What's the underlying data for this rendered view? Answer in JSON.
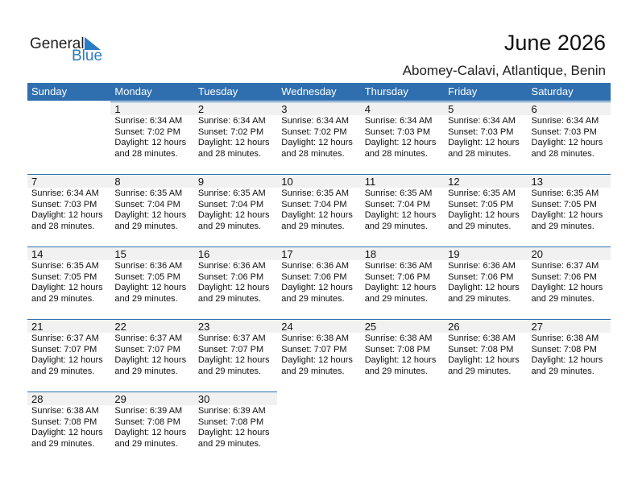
{
  "logo": {
    "line1": "General",
    "line2": "Blue"
  },
  "title": "June 2026",
  "location": "Abomey-Calavi, Atlantique, Benin",
  "colors": {
    "header": "#2f6fb0",
    "day_band": "#f1f1f1",
    "logo_blue": "#2a7bc4"
  },
  "weekdays": [
    "Sunday",
    "Monday",
    "Tuesday",
    "Wednesday",
    "Thursday",
    "Friday",
    "Saturday"
  ],
  "weeks": [
    [
      null,
      {
        "day": "1",
        "sunrise": "Sunrise: 6:34 AM",
        "sunset": "Sunset: 7:02 PM",
        "daylight1": "Daylight: 12 hours",
        "daylight2": "and 28 minutes."
      },
      {
        "day": "2",
        "sunrise": "Sunrise: 6:34 AM",
        "sunset": "Sunset: 7:02 PM",
        "daylight1": "Daylight: 12 hours",
        "daylight2": "and 28 minutes."
      },
      {
        "day": "3",
        "sunrise": "Sunrise: 6:34 AM",
        "sunset": "Sunset: 7:02 PM",
        "daylight1": "Daylight: 12 hours",
        "daylight2": "and 28 minutes."
      },
      {
        "day": "4",
        "sunrise": "Sunrise: 6:34 AM",
        "sunset": "Sunset: 7:03 PM",
        "daylight1": "Daylight: 12 hours",
        "daylight2": "and 28 minutes."
      },
      {
        "day": "5",
        "sunrise": "Sunrise: 6:34 AM",
        "sunset": "Sunset: 7:03 PM",
        "daylight1": "Daylight: 12 hours",
        "daylight2": "and 28 minutes."
      },
      {
        "day": "6",
        "sunrise": "Sunrise: 6:34 AM",
        "sunset": "Sunset: 7:03 PM",
        "daylight1": "Daylight: 12 hours",
        "daylight2": "and 28 minutes."
      }
    ],
    [
      {
        "day": "7",
        "sunrise": "Sunrise: 6:34 AM",
        "sunset": "Sunset: 7:03 PM",
        "daylight1": "Daylight: 12 hours",
        "daylight2": "and 28 minutes."
      },
      {
        "day": "8",
        "sunrise": "Sunrise: 6:35 AM",
        "sunset": "Sunset: 7:04 PM",
        "daylight1": "Daylight: 12 hours",
        "daylight2": "and 29 minutes."
      },
      {
        "day": "9",
        "sunrise": "Sunrise: 6:35 AM",
        "sunset": "Sunset: 7:04 PM",
        "daylight1": "Daylight: 12 hours",
        "daylight2": "and 29 minutes."
      },
      {
        "day": "10",
        "sunrise": "Sunrise: 6:35 AM",
        "sunset": "Sunset: 7:04 PM",
        "daylight1": "Daylight: 12 hours",
        "daylight2": "and 29 minutes."
      },
      {
        "day": "11",
        "sunrise": "Sunrise: 6:35 AM",
        "sunset": "Sunset: 7:04 PM",
        "daylight1": "Daylight: 12 hours",
        "daylight2": "and 29 minutes."
      },
      {
        "day": "12",
        "sunrise": "Sunrise: 6:35 AM",
        "sunset": "Sunset: 7:05 PM",
        "daylight1": "Daylight: 12 hours",
        "daylight2": "and 29 minutes."
      },
      {
        "day": "13",
        "sunrise": "Sunrise: 6:35 AM",
        "sunset": "Sunset: 7:05 PM",
        "daylight1": "Daylight: 12 hours",
        "daylight2": "and 29 minutes."
      }
    ],
    [
      {
        "day": "14",
        "sunrise": "Sunrise: 6:35 AM",
        "sunset": "Sunset: 7:05 PM",
        "daylight1": "Daylight: 12 hours",
        "daylight2": "and 29 minutes."
      },
      {
        "day": "15",
        "sunrise": "Sunrise: 6:36 AM",
        "sunset": "Sunset: 7:05 PM",
        "daylight1": "Daylight: 12 hours",
        "daylight2": "and 29 minutes."
      },
      {
        "day": "16",
        "sunrise": "Sunrise: 6:36 AM",
        "sunset": "Sunset: 7:06 PM",
        "daylight1": "Daylight: 12 hours",
        "daylight2": "and 29 minutes."
      },
      {
        "day": "17",
        "sunrise": "Sunrise: 6:36 AM",
        "sunset": "Sunset: 7:06 PM",
        "daylight1": "Daylight: 12 hours",
        "daylight2": "and 29 minutes."
      },
      {
        "day": "18",
        "sunrise": "Sunrise: 6:36 AM",
        "sunset": "Sunset: 7:06 PM",
        "daylight1": "Daylight: 12 hours",
        "daylight2": "and 29 minutes."
      },
      {
        "day": "19",
        "sunrise": "Sunrise: 6:36 AM",
        "sunset": "Sunset: 7:06 PM",
        "daylight1": "Daylight: 12 hours",
        "daylight2": "and 29 minutes."
      },
      {
        "day": "20",
        "sunrise": "Sunrise: 6:37 AM",
        "sunset": "Sunset: 7:06 PM",
        "daylight1": "Daylight: 12 hours",
        "daylight2": "and 29 minutes."
      }
    ],
    [
      {
        "day": "21",
        "sunrise": "Sunrise: 6:37 AM",
        "sunset": "Sunset: 7:07 PM",
        "daylight1": "Daylight: 12 hours",
        "daylight2": "and 29 minutes."
      },
      {
        "day": "22",
        "sunrise": "Sunrise: 6:37 AM",
        "sunset": "Sunset: 7:07 PM",
        "daylight1": "Daylight: 12 hours",
        "daylight2": "and 29 minutes."
      },
      {
        "day": "23",
        "sunrise": "Sunrise: 6:37 AM",
        "sunset": "Sunset: 7:07 PM",
        "daylight1": "Daylight: 12 hours",
        "daylight2": "and 29 minutes."
      },
      {
        "day": "24",
        "sunrise": "Sunrise: 6:38 AM",
        "sunset": "Sunset: 7:07 PM",
        "daylight1": "Daylight: 12 hours",
        "daylight2": "and 29 minutes."
      },
      {
        "day": "25",
        "sunrise": "Sunrise: 6:38 AM",
        "sunset": "Sunset: 7:08 PM",
        "daylight1": "Daylight: 12 hours",
        "daylight2": "and 29 minutes."
      },
      {
        "day": "26",
        "sunrise": "Sunrise: 6:38 AM",
        "sunset": "Sunset: 7:08 PM",
        "daylight1": "Daylight: 12 hours",
        "daylight2": "and 29 minutes."
      },
      {
        "day": "27",
        "sunrise": "Sunrise: 6:38 AM",
        "sunset": "Sunset: 7:08 PM",
        "daylight1": "Daylight: 12 hours",
        "daylight2": "and 29 minutes."
      }
    ],
    [
      {
        "day": "28",
        "sunrise": "Sunrise: 6:38 AM",
        "sunset": "Sunset: 7:08 PM",
        "daylight1": "Daylight: 12 hours",
        "daylight2": "and 29 minutes."
      },
      {
        "day": "29",
        "sunrise": "Sunrise: 6:39 AM",
        "sunset": "Sunset: 7:08 PM",
        "daylight1": "Daylight: 12 hours",
        "daylight2": "and 29 minutes."
      },
      {
        "day": "30",
        "sunrise": "Sunrise: 6:39 AM",
        "sunset": "Sunset: 7:08 PM",
        "daylight1": "Daylight: 12 hours",
        "daylight2": "and 29 minutes."
      },
      null,
      null,
      null,
      null
    ]
  ]
}
